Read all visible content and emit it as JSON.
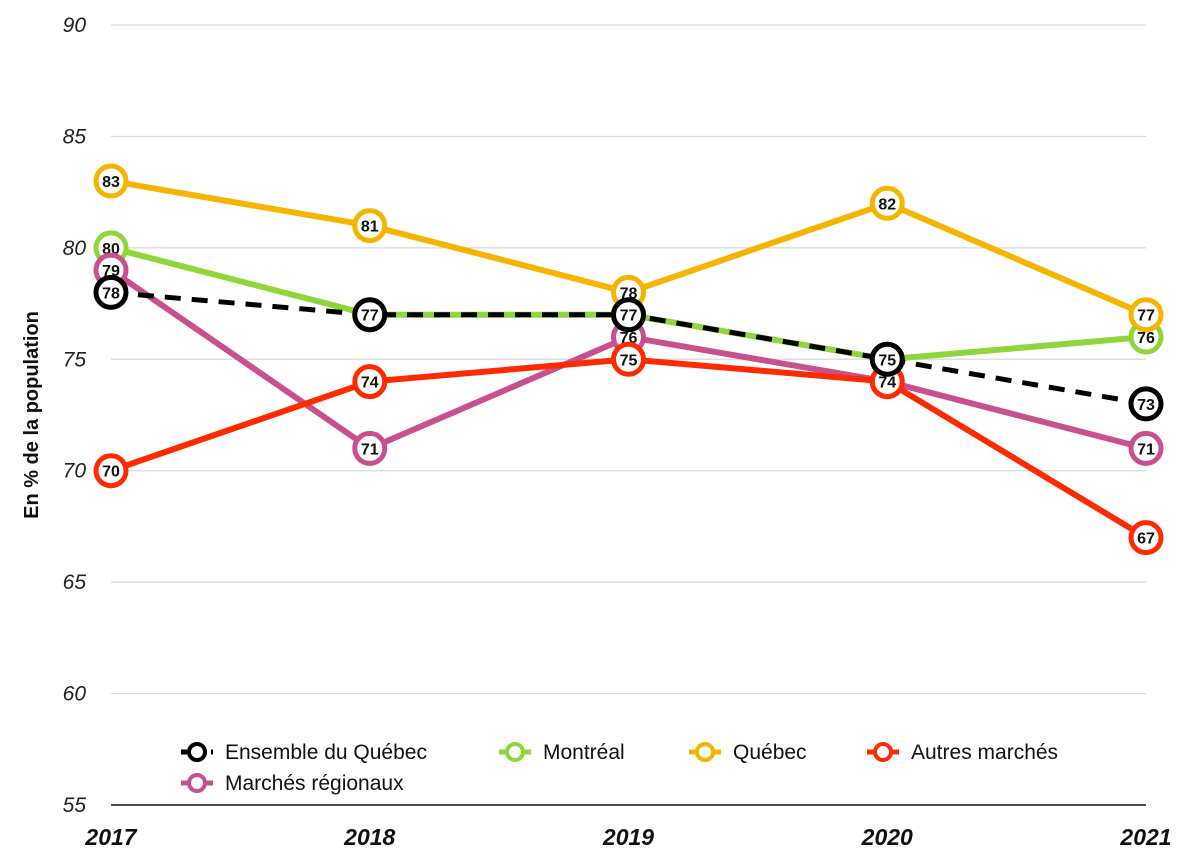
{
  "chart_data": {
    "type": "line",
    "title": "",
    "xlabel": "",
    "ylabel": "En % de la population",
    "x": [
      "2017",
      "2018",
      "2019",
      "2020",
      "2021"
    ],
    "ylim": [
      55,
      90
    ],
    "yticks": [
      55,
      60,
      65,
      70,
      75,
      80,
      85,
      90
    ],
    "grid": true,
    "legend_position": "bottom",
    "series": [
      {
        "name": "Montréal",
        "color": "#8fd63a",
        "dashed": false,
        "values": [
          80,
          77,
          77,
          75,
          76
        ]
      },
      {
        "name": "Québec",
        "color": "#f5b400",
        "dashed": false,
        "values": [
          83,
          81,
          78,
          82,
          77
        ]
      },
      {
        "name": "Marchés régionaux",
        "color": "#c8508f",
        "dashed": false,
        "values": [
          79,
          71,
          76,
          74,
          71
        ]
      },
      {
        "name": "Autres marchés",
        "color": "#ff2a00",
        "dashed": false,
        "values": [
          70,
          74,
          75,
          74,
          67
        ]
      },
      {
        "name": "Ensemble du Québec",
        "color": "#000000",
        "dashed": true,
        "values": [
          78,
          77,
          77,
          75,
          73
        ]
      }
    ],
    "legend_order": [
      "Ensemble du Québec",
      "Montréal",
      "Québec",
      "Autres marchés",
      "Marchés régionaux"
    ]
  }
}
